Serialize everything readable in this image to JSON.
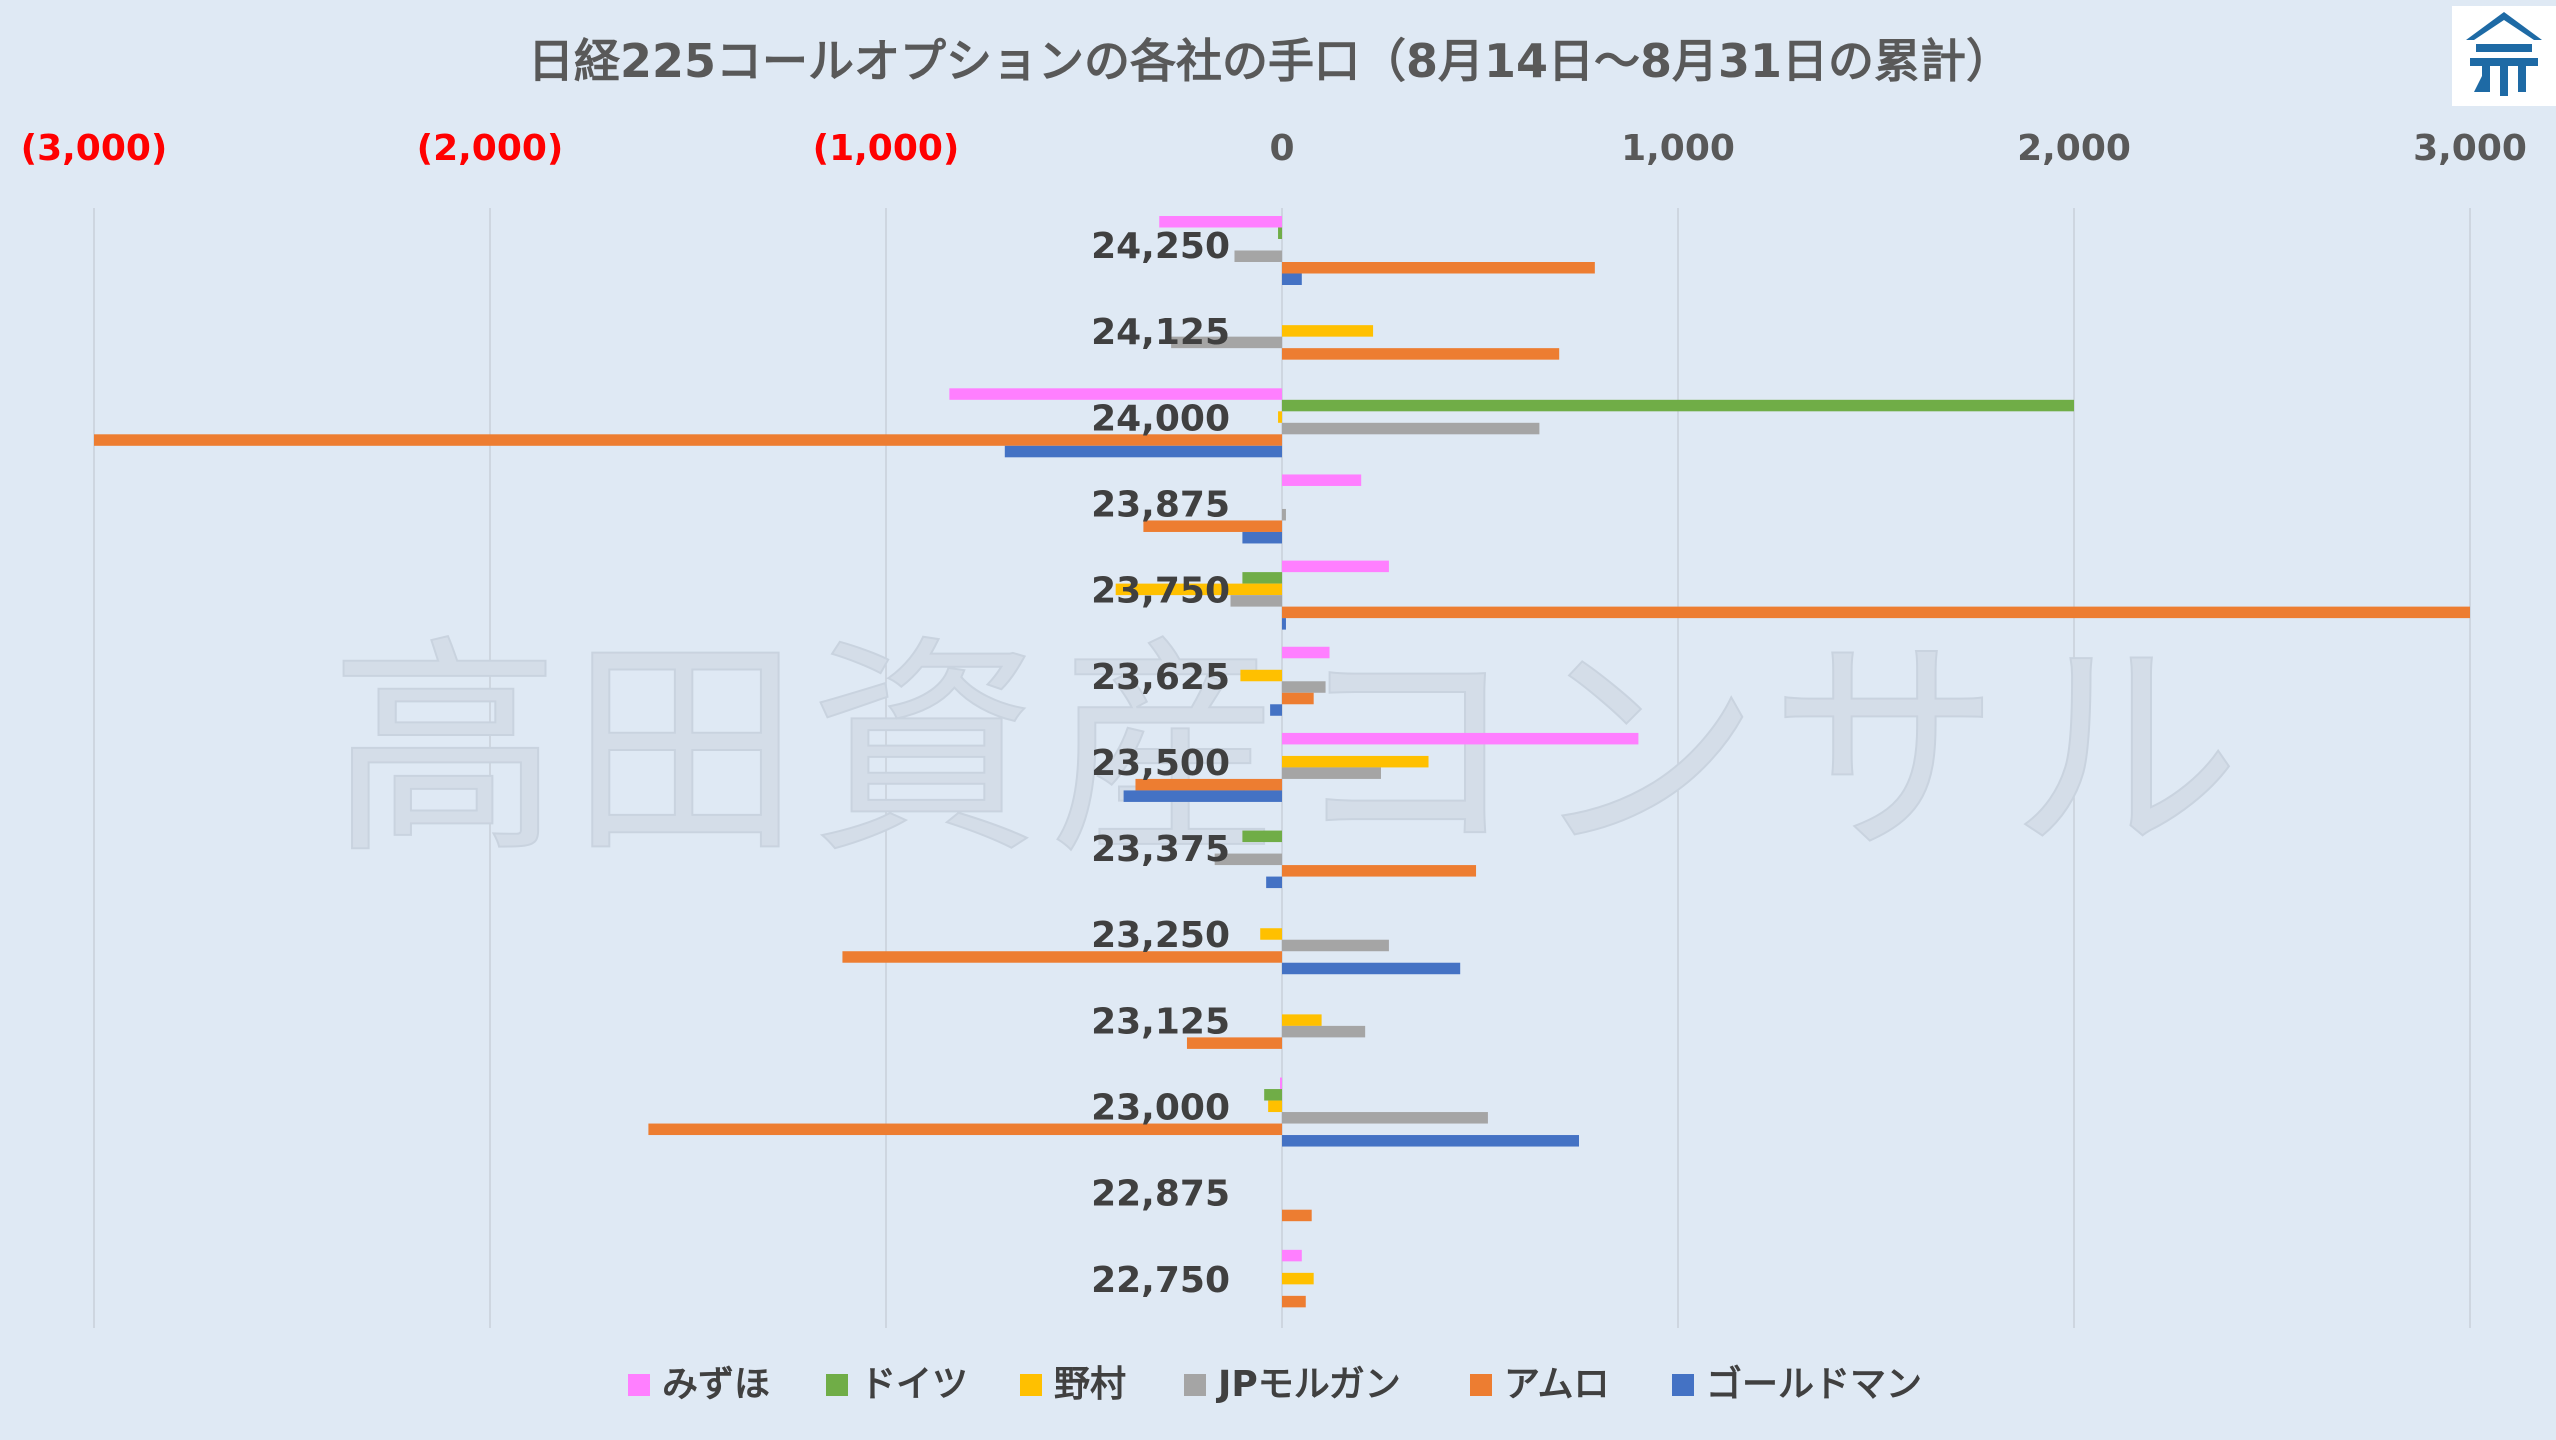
{
  "chart_data": {
    "type": "bar",
    "orientation": "horizontal",
    "title": "日経225コールオプションの各社の手口（8月14日～8月31日の累計）",
    "xlim": [
      -3000,
      3000
    ],
    "x_ticks": [
      -3000,
      -2000,
      -1000,
      0,
      1000,
      2000,
      3000
    ],
    "x_tick_labels": [
      "(3,000)",
      "(2,000)",
      "(1,000)",
      "0",
      "1,000",
      "2,000",
      "3,000"
    ],
    "negative_tick_color": "#ff0000",
    "positive_tick_color": "#595959",
    "grid": true,
    "legend_position": "bottom",
    "categories": [
      "24,250",
      "24,125",
      "24,000",
      "23,875",
      "23,750",
      "23,625",
      "23,500",
      "23,375",
      "23,250",
      "23,125",
      "23,000",
      "22,875",
      "22,750"
    ],
    "series": [
      {
        "name": "みずほ",
        "color": "#ff7fff",
        "values": [
          -310,
          0,
          -840,
          200,
          270,
          120,
          900,
          0,
          0,
          0,
          -5,
          0,
          50
        ]
      },
      {
        "name": "ドイツ",
        "color": "#70ad47",
        "values": [
          -10,
          0,
          2000,
          0,
          -100,
          0,
          0,
          -100,
          0,
          0,
          -45,
          0,
          0
        ]
      },
      {
        "name": "野村",
        "color": "#ffc000",
        "values": [
          0,
          230,
          -10,
          0,
          -420,
          -105,
          370,
          0,
          -55,
          100,
          -35,
          0,
          80
        ]
      },
      {
        "name": "JPモルガン",
        "color": "#a5a5a5",
        "values": [
          -120,
          -280,
          650,
          10,
          -130,
          110,
          250,
          -170,
          270,
          210,
          520,
          0,
          0
        ]
      },
      {
        "name": "アムロ",
        "color": "#ed7d31",
        "values": [
          790,
          700,
          -3000,
          -350,
          3000,
          80,
          -370,
          490,
          -1110,
          -240,
          -1600,
          75,
          60
        ]
      },
      {
        "name": "ゴールドマン",
        "color": "#4472c4",
        "values": [
          50,
          0,
          -700,
          -100,
          10,
          -30,
          -400,
          -40,
          450,
          0,
          750,
          0,
          0
        ]
      }
    ]
  },
  "watermark": "高田資産コンサル",
  "logo": {
    "name": "logo-icon",
    "color": "#1e6aa5"
  }
}
